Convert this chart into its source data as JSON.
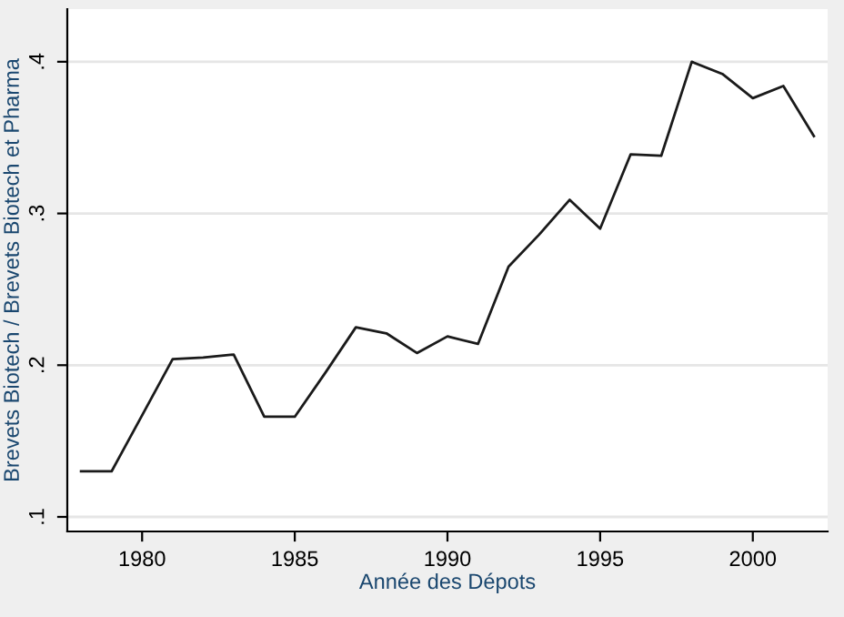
{
  "chart_data": {
    "type": "line",
    "xlabel": "Année des Dépots",
    "ylabel": "Brevets Biotech / Brevets Biotech et Pharma",
    "x": [
      1978,
      1979,
      1980,
      1981,
      1982,
      1983,
      1984,
      1985,
      1986,
      1987,
      1988,
      1989,
      1990,
      1991,
      1992,
      1993,
      1994,
      1995,
      1996,
      1997,
      1998,
      1999,
      2000,
      2001,
      2002
    ],
    "series": [
      {
        "color": "#1a1a1a",
        "values": [
          0.13,
          0.13,
          0.167,
          0.204,
          0.205,
          0.207,
          0.166,
          0.166,
          0.195,
          0.225,
          0.221,
          0.208,
          0.219,
          0.214,
          0.265,
          0.286,
          0.309,
          0.29,
          0.339,
          0.338,
          0.4,
          0.392,
          0.376,
          0.384,
          0.351
        ]
      }
    ],
    "xlim": [
      1977.55,
      2002.45
    ],
    "ylim": [
      0.0904,
      0.4347
    ],
    "xticks": [
      1980,
      1985,
      1990,
      1995,
      2000
    ],
    "yticks": [
      {
        "value": 0.1,
        "label": ".1"
      },
      {
        "value": 0.2,
        "label": ".2"
      },
      {
        "value": 0.3,
        "label": ".3"
      },
      {
        "value": 0.4,
        "label": ".4"
      }
    ],
    "grid": "y",
    "marker": "none",
    "line_style": "solid"
  }
}
